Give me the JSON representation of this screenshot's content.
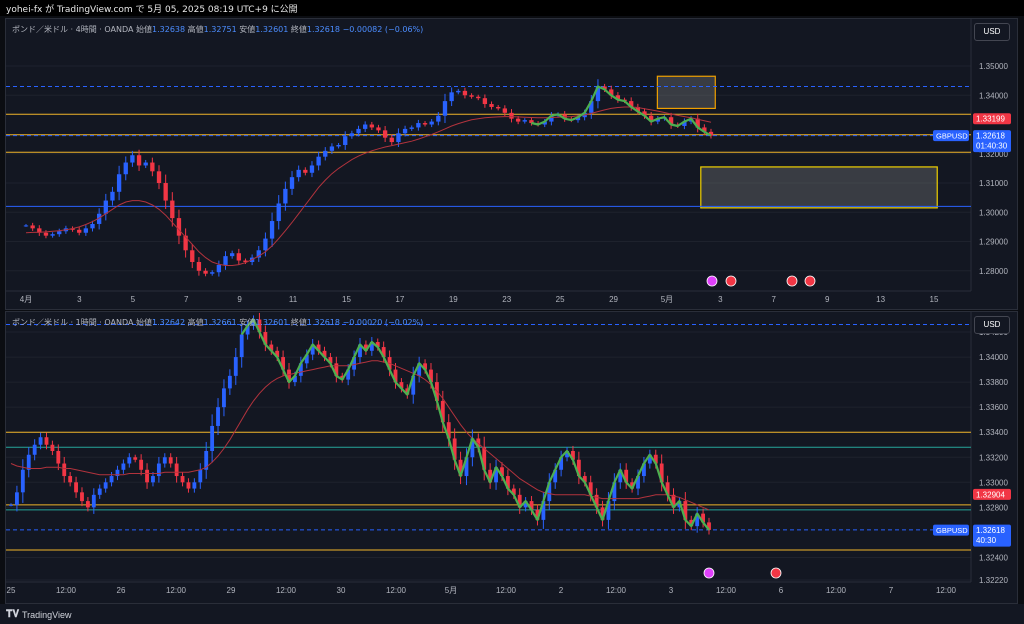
{
  "header": {
    "text": "yohei-fx が TradingView.com で 5月 05, 2025 08:19 UTC+9 に公開"
  },
  "footer": {
    "logo": "𝐓𝐕",
    "brand": "TradingView"
  },
  "colors": {
    "up": "#2962ff",
    "down": "#f23645",
    "ma": "#b2333d",
    "wave": "#4caf50",
    "gold": "#f0b429",
    "blue_line": "#2962ff"
  },
  "top": {
    "ohlc": {
      "pair": "ポンド／米ドル · 4時間 · OANDA",
      "o_l": "始値",
      "o": "1.32638",
      "h_l": "高値",
      "h": "1.32751",
      "l_l": "安値",
      "l": "1.32601",
      "c_l": "終値",
      "c": "1.32618",
      "chg": "−0.00082 (−0.06%)"
    },
    "currency": "USD",
    "y_ticks": [
      "1.35000",
      "1.34000",
      "1.32000",
      "1.31000",
      "1.30000",
      "1.29000",
      "1.28000"
    ],
    "x_ticks": [
      "4月",
      "3",
      "5",
      "7",
      "9",
      "11",
      "15",
      "17",
      "19",
      "23",
      "25",
      "29",
      "5月",
      "3",
      "7",
      "9",
      "13",
      "15"
    ],
    "price_tag": "1.33199",
    "gbpusd_label": "GBPUSD",
    "gbpusd_price": "1.32618",
    "countdown": "01:40:30"
  },
  "bottom": {
    "ohlc": {
      "pair": "ポンド／米ドル · 1時間 · OANDA",
      "o_l": "始値",
      "o": "1.32642",
      "h_l": "高値",
      "h": "1.32661",
      "l_l": "安値",
      "l": "1.32601",
      "c_l": "終値",
      "c": "1.32618",
      "chg": "−0.00020 (−0.02%)"
    },
    "currency": "USD",
    "y_ticks": [
      "1.34200",
      "1.34000",
      "1.33800",
      "1.33600",
      "1.33400",
      "1.33200",
      "1.33000",
      "1.32800",
      "1.32400",
      "1.32220"
    ],
    "x_ticks": [
      "25",
      "12:00",
      "26",
      "12:00",
      "29",
      "12:00",
      "30",
      "12:00",
      "5月",
      "12:00",
      "2",
      "12:00",
      "3",
      "12:00",
      "6",
      "12:00",
      "7",
      "12:00"
    ],
    "price_tag": "1.32904",
    "gbpusd_label": "GBPUSD",
    "gbpusd_price": "1.32618",
    "countdown": "40:30"
  },
  "chart_data": [
    {
      "type": "candlestick",
      "title": "ポンド／米ドル · 4時間 · OANDA",
      "ylim": [
        1.2765,
        1.3565
      ],
      "close": [
        1.2955,
        1.2945,
        1.293,
        1.292,
        1.2925,
        1.2935,
        1.2945,
        1.294,
        1.293,
        1.2945,
        1.296,
        1.2995,
        1.304,
        1.307,
        1.313,
        1.317,
        1.3195,
        1.316,
        1.317,
        1.314,
        1.31,
        1.304,
        1.298,
        1.292,
        1.287,
        1.283,
        1.28,
        1.279,
        1.2795,
        1.282,
        1.285,
        1.286,
        1.2835,
        1.283,
        1.2845,
        1.287,
        1.291,
        1.297,
        1.303,
        1.308,
        1.312,
        1.3145,
        1.3135,
        1.316,
        1.319,
        1.321,
        1.3225,
        1.323,
        1.326,
        1.327,
        1.3285,
        1.33,
        1.329,
        1.328,
        1.3255,
        1.324,
        1.327,
        1.3285,
        1.329,
        1.3305,
        1.33,
        1.331,
        1.333,
        1.338,
        1.341,
        1.3415,
        1.34,
        1.3395,
        1.339,
        1.337,
        1.336,
        1.3355,
        1.334,
        1.332,
        1.331,
        1.3315,
        1.3305,
        1.33,
        1.331,
        1.333,
        1.3335,
        1.332,
        1.3315,
        1.3325,
        1.334,
        1.338,
        1.343,
        1.342,
        1.34,
        1.3385,
        1.338,
        1.336,
        1.3345,
        1.333,
        1.331,
        1.332,
        1.3325,
        1.33,
        1.3295,
        1.331,
        1.332,
        1.329,
        1.3275,
        1.3262
      ],
      "ma": [
        1.293,
        1.2931,
        1.2932,
        1.2933,
        1.2935,
        1.2937,
        1.294,
        1.2944,
        1.295,
        1.2958,
        1.2968,
        1.298,
        1.2995,
        1.301,
        1.3025,
        1.3035,
        1.304,
        1.304,
        1.3035,
        1.3025,
        1.301,
        1.299,
        1.2965,
        1.294,
        1.2915,
        1.289,
        1.2865,
        1.2845,
        1.283,
        1.2822,
        1.2818,
        1.2818,
        1.2821,
        1.2828,
        1.2838,
        1.285,
        1.2865,
        1.2885,
        1.291,
        1.2937,
        1.2965,
        1.2995,
        1.3025,
        1.3055,
        1.3085,
        1.311,
        1.3132,
        1.315,
        1.3165,
        1.318,
        1.3192,
        1.3202,
        1.321,
        1.3217,
        1.3223,
        1.3228,
        1.3233,
        1.3238,
        1.3243,
        1.325,
        1.3258,
        1.3266,
        1.3275,
        1.3285,
        1.3295,
        1.3303,
        1.331,
        1.3316,
        1.332,
        1.3323,
        1.3325,
        1.3326,
        1.3327,
        1.3327,
        1.3326,
        1.3325,
        1.3324,
        1.3323,
        1.3323,
        1.3324,
        1.3325,
        1.3326,
        1.3327,
        1.333,
        1.3333,
        1.3338,
        1.3344,
        1.335,
        1.3355,
        1.3358,
        1.336,
        1.336,
        1.3358,
        1.3354,
        1.335,
        1.3346,
        1.3341,
        1.3336,
        1.3331,
        1.3327,
        1.3323,
        1.3318,
        1.3313,
        1.3308
      ],
      "hlines": [
        {
          "value": 1.343,
          "color": "#2962ff",
          "style": "dashed"
        },
        {
          "value": 1.3335,
          "color": "#f0b429",
          "style": "solid"
        },
        {
          "value": 1.3265,
          "color": "#f0b429",
          "style": "solid"
        },
        {
          "value": 1.3262,
          "color": "#2962ff",
          "style": "dashed"
        },
        {
          "value": 1.3205,
          "color": "#f0b429",
          "style": "solid"
        },
        {
          "value": 1.302,
          "color": "#2962ff",
          "style": "solid"
        }
      ],
      "zones": [
        {
          "x_from": 0.675,
          "x_to": 0.735,
          "y_high": 1.3465,
          "y_low": 1.3355,
          "color": "#f0a000"
        },
        {
          "x_from": 0.72,
          "x_to": 0.965,
          "y_high": 1.3155,
          "y_low": 1.3015,
          "color": "#f0d000"
        }
      ]
    },
    {
      "type": "candlestick",
      "title": "ポンド／米ドル · 1時間 · OANDA",
      "ylim": [
        1.3222,
        1.3428
      ],
      "close": [
        1.3282,
        1.3292,
        1.331,
        1.3322,
        1.333,
        1.3336,
        1.333,
        1.3325,
        1.3315,
        1.3305,
        1.33,
        1.3292,
        1.3285,
        1.328,
        1.329,
        1.3295,
        1.33,
        1.3305,
        1.331,
        1.3315,
        1.332,
        1.3318,
        1.331,
        1.33,
        1.3305,
        1.3315,
        1.332,
        1.3315,
        1.3305,
        1.33,
        1.3295,
        1.33,
        1.331,
        1.3325,
        1.3345,
        1.336,
        1.3375,
        1.3385,
        1.34,
        1.3418,
        1.3425,
        1.343,
        1.342,
        1.341,
        1.3405,
        1.34,
        1.339,
        1.338,
        1.3385,
        1.3395,
        1.3402,
        1.341,
        1.3405,
        1.34,
        1.3395,
        1.3385,
        1.3382,
        1.339,
        1.34,
        1.341,
        1.3405,
        1.3412,
        1.3408,
        1.34,
        1.339,
        1.338,
        1.3375,
        1.337,
        1.3385,
        1.3395,
        1.339,
        1.338,
        1.3365,
        1.3348,
        1.3335,
        1.3318,
        1.3305,
        1.332,
        1.3335,
        1.3328,
        1.331,
        1.33,
        1.3312,
        1.3305,
        1.3295,
        1.329,
        1.328,
        1.3285,
        1.3278,
        1.327,
        1.3285,
        1.33,
        1.331,
        1.332,
        1.3325,
        1.3318,
        1.3305,
        1.33,
        1.329,
        1.328,
        1.327,
        1.3285,
        1.33,
        1.331,
        1.33,
        1.3295,
        1.3305,
        1.3315,
        1.3322,
        1.3315,
        1.33,
        1.329,
        1.328,
        1.3285,
        1.327,
        1.3265,
        1.3275,
        1.3268,
        1.3262
      ],
      "ma": [
        1.3315,
        1.3313,
        1.3312,
        1.3311,
        1.3311,
        1.3311,
        1.3312,
        1.3312,
        1.3312,
        1.3311,
        1.3311,
        1.331,
        1.3309,
        1.3308,
        1.3307,
        1.3306,
        1.3306,
        1.3306,
        1.3306,
        1.3306,
        1.3307,
        1.3307,
        1.3307,
        1.3307,
        1.3307,
        1.3307,
        1.3308,
        1.3308,
        1.3308,
        1.3308,
        1.3308,
        1.3309,
        1.331,
        1.3312,
        1.3316,
        1.3321,
        1.3327,
        1.3334,
        1.3342,
        1.335,
        1.3358,
        1.3365,
        1.3371,
        1.3376,
        1.338,
        1.3383,
        1.3385,
        1.3386,
        1.3387,
        1.3388,
        1.3389,
        1.339,
        1.3391,
        1.3392,
        1.3393,
        1.3393,
        1.3393,
        1.3393,
        1.3394,
        1.3395,
        1.3396,
        1.3397,
        1.3397,
        1.3396,
        1.3395,
        1.3393,
        1.3391,
        1.3389,
        1.3387,
        1.3385,
        1.3382,
        1.3378,
        1.3373,
        1.3367,
        1.336,
        1.3353,
        1.3346,
        1.334,
        1.3335,
        1.3331,
        1.3327,
        1.3323,
        1.3319,
        1.3315,
        1.3311,
        1.3307,
        1.3303,
        1.33,
        1.3297,
        1.3294,
        1.3292,
        1.3291,
        1.329,
        1.329,
        1.329,
        1.329,
        1.329,
        1.329,
        1.3289,
        1.3288,
        1.3287,
        1.3287,
        1.3287,
        1.3287,
        1.3287,
        1.3287,
        1.3287,
        1.3288,
        1.3289,
        1.329,
        1.329,
        1.329,
        1.3289,
        1.3288,
        1.3286,
        1.3284,
        1.3282,
        1.328,
        1.3278
      ],
      "hlines": [
        {
          "value": 1.3426,
          "color": "#2962ff",
          "style": "dashed"
        },
        {
          "value": 1.334,
          "color": "#f0b429",
          "style": "solid"
        },
        {
          "value": 1.3328,
          "color": "#26a69a",
          "style": "solid"
        },
        {
          "value": 1.3282,
          "color": "#f0b429",
          "style": "solid"
        },
        {
          "value": 1.3278,
          "color": "#26a69a",
          "style": "solid"
        },
        {
          "value": 1.3262,
          "color": "#2962ff",
          "style": "dashed"
        },
        {
          "value": 1.3246,
          "color": "#f0b429",
          "style": "solid"
        }
      ]
    }
  ]
}
